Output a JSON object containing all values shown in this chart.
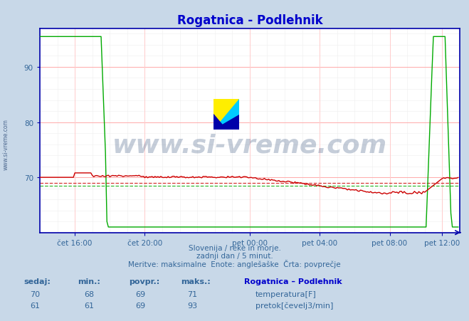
{
  "title": "Rogatnica - Podlehnik",
  "title_color": "#0000cc",
  "bg_color": "#c8d8e8",
  "plot_bg_color": "#ffffff",
  "axis_color": "#0000aa",
  "tick_label_color": "#336699",
  "xlim": [
    0,
    288
  ],
  "ylim": [
    60,
    97
  ],
  "yticks": [
    70,
    80,
    90
  ],
  "xtick_positions": [
    24,
    72,
    144,
    192,
    240,
    276
  ],
  "xtick_labels": [
    "čet 16:00",
    "čet 20:00",
    "pet 00:00",
    "pet 04:00",
    "pet 08:00",
    "pet 12:00"
  ],
  "avg_temp": 69.0,
  "avg_flow": 68.5,
  "temp_color": "#cc0000",
  "flow_color": "#00aa00",
  "watermark": "www.si-vreme.com",
  "watermark_color": "#1a3a6a",
  "footer_line1": "Slovenija / reke in morje.",
  "footer_line2": "zadnji dan / 5 minut.",
  "footer_line3": "Meritve: maksimalne  Enote: anglešaške  Črta: povprečje",
  "footer_color": "#336699",
  "table_color": "#336699",
  "table_bold_color": "#0000cc",
  "grid_h_major_color": "#ffaaaa",
  "grid_h_minor_color": "#eeeeee",
  "grid_v_major_color": "#ffcccc",
  "grid_v_minor_color": "#eeeeee"
}
